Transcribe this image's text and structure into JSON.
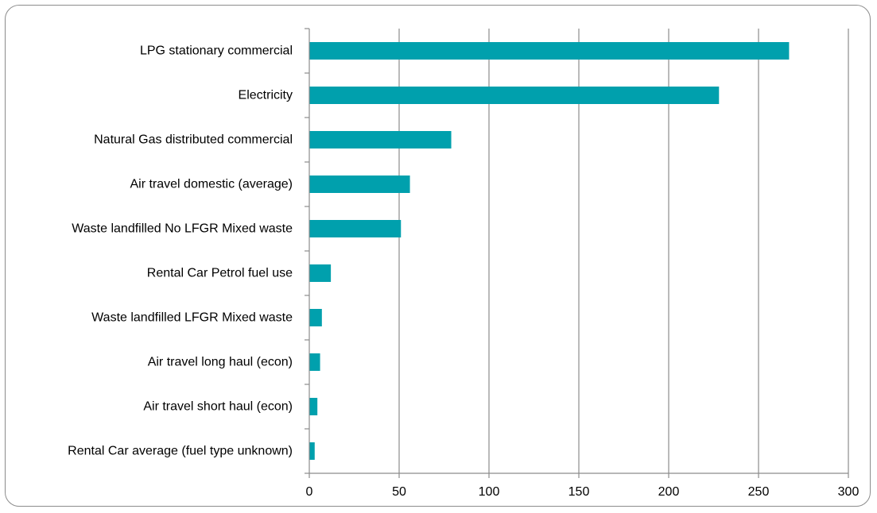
{
  "chart_data": {
    "type": "bar",
    "orientation": "horizontal",
    "categories": [
      "LPG stationary commercial",
      "Electricity",
      "Natural Gas distributed commercial",
      "Air travel domestic (average)",
      "Waste landfilled No LFGR Mixed waste",
      "Rental Car Petrol fuel use",
      "Waste landfilled LFGR Mixed waste",
      "Air travel long haul (econ)",
      "Air travel short haul (econ)",
      "Rental Car average (fuel type unknown)"
    ],
    "values": [
      267,
      228,
      79,
      56,
      51,
      12,
      7,
      6,
      4.5,
      3
    ],
    "xlim": [
      0,
      300
    ],
    "xticks": [
      0,
      50,
      100,
      150,
      200,
      250,
      300
    ],
    "xtick_labels": [
      "0",
      "50",
      "100",
      "150",
      "200",
      "250",
      "300"
    ],
    "title": "",
    "xlabel": "",
    "ylabel": "",
    "grid": "vertical",
    "legend": "none",
    "colors": {
      "bar": "#00A0AD",
      "grid": "#8c8c8c",
      "axis": "#8c8c8c"
    }
  }
}
